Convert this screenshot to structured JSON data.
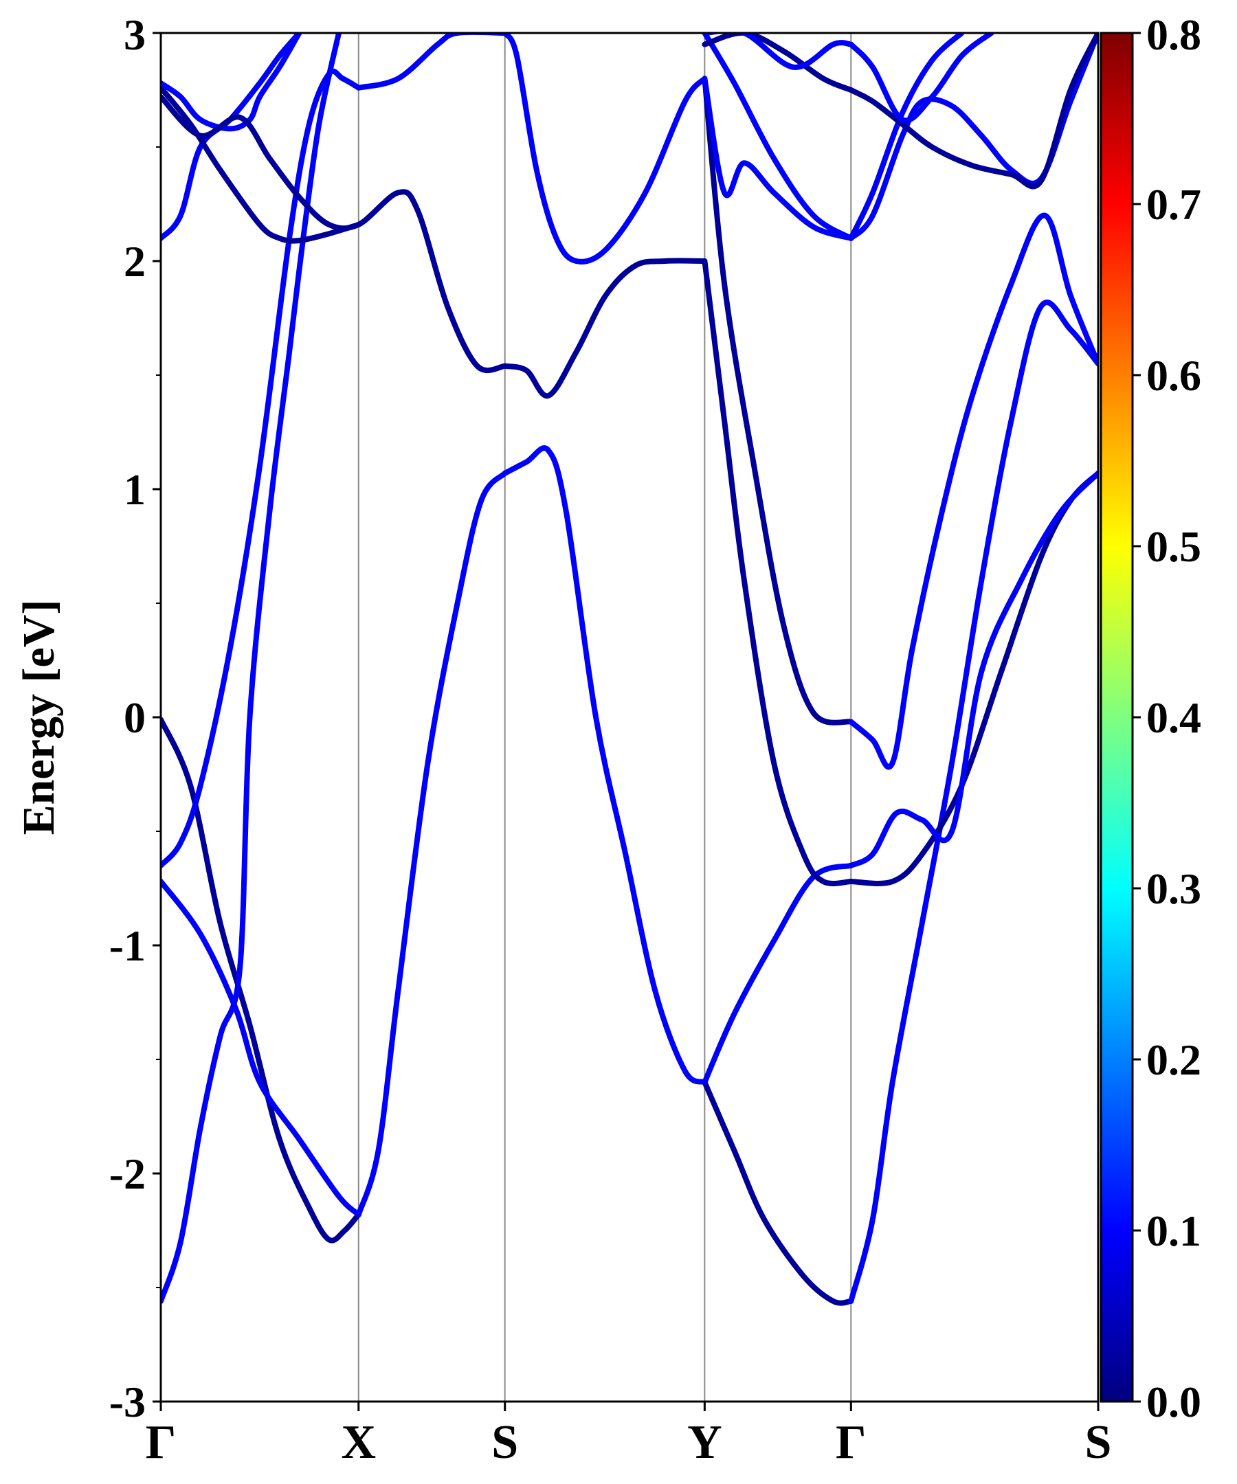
{
  "chart_data": {
    "type": "line",
    "ylabel": "Energy [eV]",
    "ylim": [
      -3,
      3
    ],
    "yticks": [
      "-3",
      "-2",
      "-1",
      "0",
      "1",
      "2",
      "3"
    ],
    "kpath": {
      "labels": [
        "Γ",
        "X",
        "S",
        "Y",
        "Γ",
        "S"
      ],
      "positions": [
        0,
        1,
        1.74,
        2.75,
        3.49,
        4.74
      ]
    },
    "vertical_grid_at_kpoints": true,
    "colorbar": {
      "colormap": "jet",
      "range": [
        0.0,
        0.8
      ],
      "ticks": [
        "0.0",
        "0.1",
        "0.2",
        "0.3",
        "0.4",
        "0.5",
        "0.6",
        "0.7",
        "0.8"
      ]
    },
    "bands": [
      {
        "weight": 0.02,
        "points": [
          [
            0,
            -0.01
          ],
          [
            0.15,
            -0.3
          ],
          [
            0.3,
            -0.9
          ],
          [
            0.45,
            -1.35
          ],
          [
            0.6,
            -1.85
          ],
          [
            0.75,
            -2.15
          ],
          [
            0.85,
            -2.29
          ],
          [
            0.93,
            -2.25
          ],
          [
            1,
            -2.18
          ]
        ]
      },
      {
        "weight": 0.1,
        "points": [
          [
            0,
            -0.65
          ],
          [
            0.1,
            -0.55
          ],
          [
            0.2,
            -0.3
          ],
          [
            0.35,
            0.3
          ],
          [
            0.5,
            1.1
          ],
          [
            0.65,
            2.1
          ],
          [
            0.75,
            2.6
          ],
          [
            0.85,
            2.82
          ],
          [
            0.92,
            2.8
          ],
          [
            1,
            2.76
          ]
        ]
      },
      {
        "weight": 0.1,
        "points": [
          [
            0,
            -0.72
          ],
          [
            0.2,
            -0.95
          ],
          [
            0.38,
            -1.28
          ],
          [
            0.5,
            -1.6
          ],
          [
            0.7,
            -1.85
          ],
          [
            0.9,
            -2.1
          ],
          [
            1,
            -2.18
          ]
        ]
      },
      {
        "weight": 0.1,
        "points": [
          [
            0,
            -2.56
          ],
          [
            0.1,
            -2.3
          ],
          [
            0.2,
            -1.8
          ],
          [
            0.3,
            -1.4
          ],
          [
            0.4,
            -1.1
          ],
          [
            0.45,
            0.0
          ],
          [
            0.55,
            0.9
          ],
          [
            0.65,
            1.6
          ],
          [
            0.72,
            2.1
          ],
          [
            0.8,
            2.6
          ],
          [
            0.9,
            3.0
          ]
        ]
      },
      {
        "weight": 0.1,
        "points": [
          [
            0,
            2.1
          ],
          [
            0.1,
            2.2
          ],
          [
            0.2,
            2.5
          ],
          [
            0.35,
            2.62
          ],
          [
            0.5,
            2.78
          ],
          [
            0.6,
            2.9
          ],
          [
            0.7,
            3.0
          ]
        ]
      },
      {
        "weight": 0.02,
        "points": [
          [
            0,
            2.76
          ],
          [
            0.15,
            2.6
          ],
          [
            0.3,
            2.4
          ],
          [
            0.5,
            2.16
          ],
          [
            0.6,
            2.1
          ],
          [
            0.7,
            2.09
          ],
          [
            0.85,
            2.12
          ],
          [
            1,
            2.16
          ]
        ]
      },
      {
        "weight": 0.1,
        "points": [
          [
            0,
            2.78
          ],
          [
            0.1,
            2.72
          ],
          [
            0.2,
            2.62
          ],
          [
            0.35,
            2.58
          ],
          [
            0.45,
            2.62
          ],
          [
            0.5,
            2.72
          ],
          [
            0.6,
            2.85
          ],
          [
            0.7,
            3.0
          ]
        ]
      },
      {
        "weight": 0.02,
        "points": [
          [
            0,
            2.72
          ],
          [
            0.2,
            2.55
          ],
          [
            0.4,
            2.63
          ],
          [
            0.55,
            2.45
          ],
          [
            0.7,
            2.28
          ],
          [
            0.85,
            2.16
          ],
          [
            1,
            2.16
          ],
          [
            1.2,
            2.3
          ],
          [
            1.3,
            2.22
          ],
          [
            1.45,
            1.8
          ],
          [
            1.6,
            1.54
          ],
          [
            1.74,
            1.54
          ]
        ]
      },
      {
        "weight": 0.1,
        "points": [
          [
            1,
            2.76
          ],
          [
            1.2,
            2.8
          ],
          [
            1.4,
            2.95
          ],
          [
            1.5,
            3.0
          ],
          [
            1.74,
            3.0
          ]
        ]
      },
      {
        "weight": 0.1,
        "points": [
          [
            1,
            -2.18
          ],
          [
            1.1,
            -1.9
          ],
          [
            1.2,
            -1.2
          ],
          [
            1.35,
            -0.2
          ],
          [
            1.5,
            0.5
          ],
          [
            1.62,
            0.95
          ],
          [
            1.74,
            1.07
          ]
        ]
      },
      {
        "weight": 0.1,
        "points": [
          [
            1.74,
            1.07
          ],
          [
            1.85,
            1.12
          ],
          [
            1.96,
            1.17
          ],
          [
            2.05,
            0.9
          ],
          [
            2.2,
            0.0
          ],
          [
            2.35,
            -0.6
          ],
          [
            2.5,
            -1.2
          ],
          [
            2.65,
            -1.55
          ],
          [
            2.75,
            -1.6
          ]
        ]
      },
      {
        "weight": 0.02,
        "points": [
          [
            1.74,
            1.54
          ],
          [
            1.85,
            1.52
          ],
          [
            1.96,
            1.41
          ],
          [
            2.1,
            1.6
          ],
          [
            2.25,
            1.85
          ],
          [
            2.4,
            1.98
          ],
          [
            2.55,
            2.0
          ],
          [
            2.75,
            2.0
          ]
        ]
      },
      {
        "weight": 0.1,
        "points": [
          [
            1.74,
            3.0
          ],
          [
            1.8,
            2.9
          ],
          [
            1.9,
            2.4
          ],
          [
            2.0,
            2.1
          ],
          [
            2.1,
            2.0
          ],
          [
            2.25,
            2.05
          ],
          [
            2.45,
            2.3
          ],
          [
            2.65,
            2.7
          ],
          [
            2.75,
            2.8
          ]
        ]
      },
      {
        "weight": 0.02,
        "points": [
          [
            2.75,
            -1.6
          ],
          [
            2.9,
            -1.9
          ],
          [
            3.05,
            -2.2
          ],
          [
            3.25,
            -2.45
          ],
          [
            3.4,
            -2.56
          ],
          [
            3.49,
            -2.56
          ]
        ]
      },
      {
        "weight": 0.1,
        "points": [
          [
            2.75,
            -1.6
          ],
          [
            2.9,
            -1.3
          ],
          [
            3.1,
            -0.98
          ],
          [
            3.3,
            -0.7
          ],
          [
            3.49,
            -0.65
          ]
        ]
      },
      {
        "weight": 0.02,
        "points": [
          [
            2.75,
            2.0
          ],
          [
            2.85,
            1.3
          ],
          [
            2.95,
            0.6
          ],
          [
            3.1,
            -0.2
          ],
          [
            3.25,
            -0.6
          ],
          [
            3.35,
            -0.72
          ],
          [
            3.49,
            -0.72
          ]
        ]
      },
      {
        "weight": 0.02,
        "points": [
          [
            2.75,
            2.8
          ],
          [
            2.85,
            1.9
          ],
          [
            3.0,
            1.1
          ],
          [
            3.15,
            0.4
          ],
          [
            3.3,
            0.02
          ],
          [
            3.49,
            -0.02
          ]
        ]
      },
      {
        "weight": 0.1,
        "points": [
          [
            2.75,
            2.8
          ],
          [
            2.85,
            2.3
          ],
          [
            2.95,
            2.43
          ],
          [
            3.1,
            2.3
          ],
          [
            3.3,
            2.15
          ],
          [
            3.49,
            2.1
          ]
        ]
      },
      {
        "weight": 0.1,
        "points": [
          [
            2.75,
            3.0
          ],
          [
            2.9,
            2.78
          ],
          [
            3.1,
            2.45
          ],
          [
            3.3,
            2.2
          ],
          [
            3.49,
            2.1
          ]
        ]
      },
      {
        "weight": 0.02,
        "points": [
          [
            2.75,
            2.95
          ],
          [
            2.95,
            3.0
          ],
          [
            3.15,
            2.92
          ],
          [
            3.35,
            2.8
          ],
          [
            3.49,
            2.75
          ]
        ]
      },
      {
        "weight": 0.1,
        "points": [
          [
            2.75,
            3.0
          ],
          [
            2.95,
            3.0
          ],
          [
            3.2,
            2.85
          ],
          [
            3.4,
            2.95
          ],
          [
            3.49,
            2.95
          ]
        ]
      },
      {
        "weight": 0.1,
        "points": [
          [
            3.49,
            -2.56
          ],
          [
            3.6,
            -2.2
          ],
          [
            3.7,
            -1.6
          ],
          [
            3.85,
            -0.9
          ],
          [
            4.0,
            -0.2
          ],
          [
            4.15,
            0.6
          ],
          [
            4.3,
            1.3
          ],
          [
            4.45,
            1.8
          ],
          [
            4.6,
            1.7
          ],
          [
            4.74,
            1.55
          ]
        ]
      },
      {
        "weight": 0.02,
        "points": [
          [
            3.49,
            -0.72
          ],
          [
            3.7,
            -0.72
          ],
          [
            3.85,
            -0.6
          ],
          [
            4.05,
            -0.3
          ],
          [
            4.25,
            0.2
          ],
          [
            4.45,
            0.7
          ],
          [
            4.6,
            0.95
          ],
          [
            4.74,
            1.07
          ]
        ]
      },
      {
        "weight": 0.1,
        "points": [
          [
            3.49,
            -0.65
          ],
          [
            3.6,
            -0.6
          ],
          [
            3.72,
            -0.42
          ],
          [
            3.85,
            -0.45
          ],
          [
            4.0,
            -0.5
          ],
          [
            4.15,
            0.2
          ],
          [
            4.35,
            0.6
          ],
          [
            4.55,
            0.9
          ],
          [
            4.74,
            1.07
          ]
        ]
      },
      {
        "weight": 0.1,
        "points": [
          [
            3.49,
            -0.02
          ],
          [
            3.6,
            -0.1
          ],
          [
            3.7,
            -0.2
          ],
          [
            3.8,
            0.3
          ],
          [
            3.95,
            0.9
          ],
          [
            4.1,
            1.4
          ],
          [
            4.3,
            1.9
          ],
          [
            4.47,
            2.2
          ],
          [
            4.6,
            1.85
          ],
          [
            4.74,
            1.55
          ]
        ]
      },
      {
        "weight": 0.1,
        "points": [
          [
            3.49,
            2.1
          ],
          [
            3.6,
            2.3
          ],
          [
            3.75,
            2.65
          ],
          [
            3.9,
            2.88
          ],
          [
            4.05,
            3.0
          ]
        ]
      },
      {
        "weight": 0.1,
        "points": [
          [
            3.49,
            2.1
          ],
          [
            3.6,
            2.2
          ],
          [
            3.75,
            2.55
          ],
          [
            3.85,
            2.7
          ],
          [
            4.0,
            2.68
          ],
          [
            4.15,
            2.55
          ],
          [
            4.3,
            2.4
          ],
          [
            4.45,
            2.36
          ],
          [
            4.6,
            2.7
          ],
          [
            4.74,
            3.0
          ]
        ]
      },
      {
        "weight": 0.02,
        "points": [
          [
            3.49,
            2.75
          ],
          [
            3.6,
            2.7
          ],
          [
            3.75,
            2.6
          ],
          [
            3.9,
            2.5
          ],
          [
            4.1,
            2.42
          ],
          [
            4.3,
            2.38
          ],
          [
            4.45,
            2.35
          ],
          [
            4.6,
            2.75
          ],
          [
            4.74,
            3.0
          ]
        ]
      },
      {
        "weight": 0.1,
        "points": [
          [
            3.49,
            2.95
          ],
          [
            3.6,
            2.85
          ],
          [
            3.75,
            2.62
          ],
          [
            3.9,
            2.72
          ],
          [
            4.05,
            2.9
          ],
          [
            4.2,
            3.0
          ]
        ]
      }
    ]
  }
}
